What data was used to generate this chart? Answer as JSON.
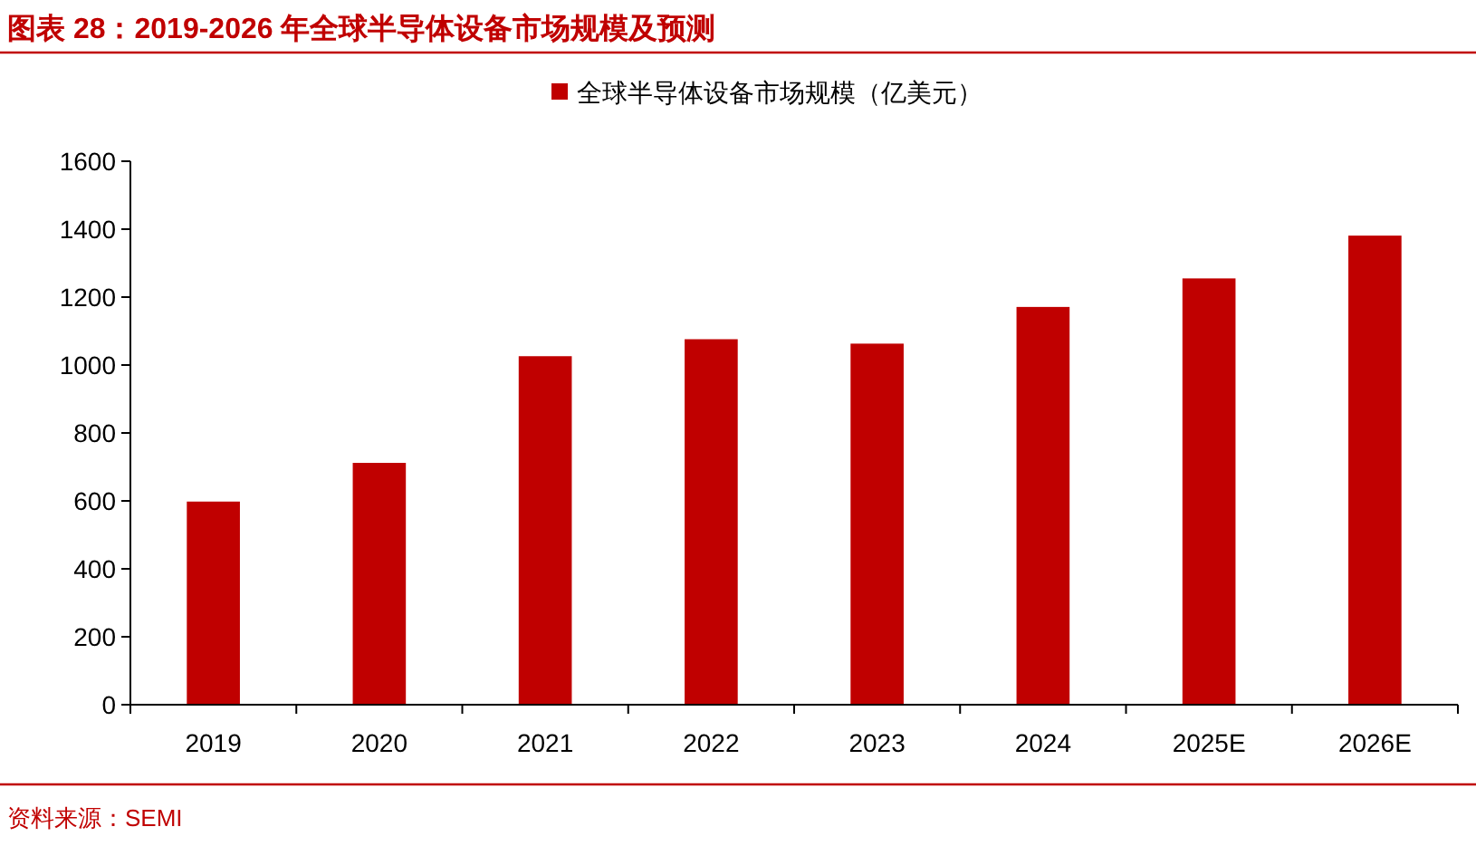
{
  "chart_data": {
    "type": "bar",
    "title": "图表 28：2019-2026 年全球半导体设备市场规模及预测",
    "categories": [
      "2019",
      "2020",
      "2021",
      "2022",
      "2023",
      "2024",
      "2025E",
      "2026E"
    ],
    "series": [
      {
        "name": "全球半导体设备市场规模（亿美元）",
        "color": "#c00000",
        "values": [
          598,
          712,
          1026,
          1076,
          1063,
          1171,
          1255,
          1381
        ]
      }
    ],
    "ylim": [
      0,
      1600
    ],
    "yticks": [
      0,
      200,
      400,
      600,
      800,
      1000,
      1200,
      1400,
      1600
    ],
    "grid": false,
    "legend": "top",
    "annotations": [
      "资料来源：SEMI"
    ]
  }
}
